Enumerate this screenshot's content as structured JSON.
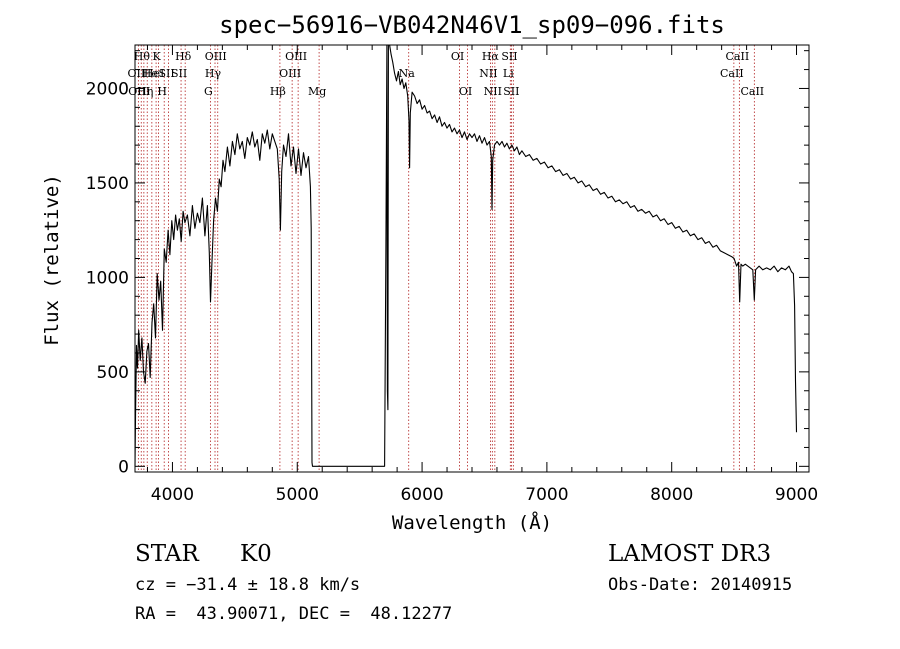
{
  "chart_data": {
    "type": "line",
    "title": "spec−56916−VB042N46V1_sp09−096.fits",
    "xlabel": "Wavelength (Å)",
    "ylabel": "Flux (relative)",
    "xlim": [
      3700,
      9100
    ],
    "ylim": [
      -30,
      2230
    ],
    "xticks": [
      {
        "value": 4000,
        "label": "4000"
      },
      {
        "value": 5000,
        "label": "5000"
      },
      {
        "value": 6000,
        "label": "6000"
      },
      {
        "value": 7000,
        "label": "7000"
      },
      {
        "value": 8000,
        "label": "8000"
      },
      {
        "value": 9000,
        "label": "9000"
      }
    ],
    "yticks": [
      {
        "value": 0,
        "label": "0"
      },
      {
        "value": 500,
        "label": "500"
      },
      {
        "value": 1000,
        "label": "1000"
      },
      {
        "value": 1500,
        "label": "1500"
      },
      {
        "value": 2000,
        "label": "2000"
      }
    ],
    "series": [
      {
        "name": "flux",
        "points": [
          [
            3700,
            0
          ],
          [
            3705,
            300
          ],
          [
            3712,
            640
          ],
          [
            3720,
            520
          ],
          [
            3730,
            720
          ],
          [
            3742,
            560
          ],
          [
            3755,
            680
          ],
          [
            3768,
            500
          ],
          [
            3782,
            440
          ],
          [
            3795,
            610
          ],
          [
            3808,
            650
          ],
          [
            3822,
            470
          ],
          [
            3836,
            760
          ],
          [
            3850,
            860
          ],
          [
            3864,
            680
          ],
          [
            3878,
            1020
          ],
          [
            3892,
            880
          ],
          [
            3906,
            980
          ],
          [
            3920,
            720
          ],
          [
            3935,
            1150
          ],
          [
            3950,
            1080
          ],
          [
            3965,
            1250
          ],
          [
            3980,
            1120
          ],
          [
            3995,
            1300
          ],
          [
            4010,
            1200
          ],
          [
            4025,
            1330
          ],
          [
            4040,
            1250
          ],
          [
            4055,
            1310
          ],
          [
            4070,
            1190
          ],
          [
            4085,
            1350
          ],
          [
            4100,
            1290
          ],
          [
            4120,
            1330
          ],
          [
            4140,
            1220
          ],
          [
            4160,
            1380
          ],
          [
            4180,
            1260
          ],
          [
            4200,
            1340
          ],
          [
            4220,
            1290
          ],
          [
            4240,
            1420
          ],
          [
            4260,
            1220
          ],
          [
            4280,
            1380
          ],
          [
            4295,
            1130
          ],
          [
            4305,
            870
          ],
          [
            4315,
            1060
          ],
          [
            4330,
            1300
          ],
          [
            4345,
            1420
          ],
          [
            4360,
            1350
          ],
          [
            4375,
            1520
          ],
          [
            4390,
            1480
          ],
          [
            4405,
            1620
          ],
          [
            4420,
            1560
          ],
          [
            4440,
            1690
          ],
          [
            4460,
            1590
          ],
          [
            4480,
            1720
          ],
          [
            4500,
            1650
          ],
          [
            4520,
            1760
          ],
          [
            4540,
            1680
          ],
          [
            4560,
            1720
          ],
          [
            4580,
            1630
          ],
          [
            4600,
            1740
          ],
          [
            4620,
            1700
          ],
          [
            4640,
            1770
          ],
          [
            4660,
            1690
          ],
          [
            4680,
            1730
          ],
          [
            4700,
            1620
          ],
          [
            4720,
            1760
          ],
          [
            4740,
            1710
          ],
          [
            4760,
            1780
          ],
          [
            4780,
            1680
          ],
          [
            4800,
            1760
          ],
          [
            4820,
            1720
          ],
          [
            4840,
            1680
          ],
          [
            4855,
            1520
          ],
          [
            4865,
            1250
          ],
          [
            4875,
            1560
          ],
          [
            4890,
            1700
          ],
          [
            4910,
            1640
          ],
          [
            4930,
            1760
          ],
          [
            4950,
            1590
          ],
          [
            4970,
            1690
          ],
          [
            4990,
            1550
          ],
          [
            5010,
            1680
          ],
          [
            5030,
            1540
          ],
          [
            5050,
            1660
          ],
          [
            5070,
            1580
          ],
          [
            5090,
            1640
          ],
          [
            5105,
            1480
          ],
          [
            5112,
            1260
          ],
          [
            5118,
            20
          ],
          [
            5122,
            0
          ],
          [
            5140,
            0
          ],
          [
            5200,
            0
          ],
          [
            5400,
            0
          ],
          [
            5600,
            0
          ],
          [
            5700,
            0
          ],
          [
            5710,
            1160
          ],
          [
            5718,
            2230
          ],
          [
            5722,
            400
          ],
          [
            5726,
            300
          ],
          [
            5730,
            2230
          ],
          [
            5740,
            2230
          ],
          [
            5752,
            2180
          ],
          [
            5765,
            2140
          ],
          [
            5780,
            2080
          ],
          [
            5795,
            2040
          ],
          [
            5810,
            2090
          ],
          [
            5825,
            2020
          ],
          [
            5840,
            2050
          ],
          [
            5855,
            2000
          ],
          [
            5870,
            2030
          ],
          [
            5885,
            1960
          ],
          [
            5895,
            1830
          ],
          [
            5900,
            1580
          ],
          [
            5906,
            1870
          ],
          [
            5920,
            1980
          ],
          [
            5940,
            1960
          ],
          [
            5960,
            1920
          ],
          [
            5980,
            1940
          ],
          [
            6000,
            1890
          ],
          [
            6020,
            1910
          ],
          [
            6040,
            1870
          ],
          [
            6060,
            1880
          ],
          [
            6080,
            1840
          ],
          [
            6100,
            1860
          ],
          [
            6120,
            1820
          ],
          [
            6140,
            1850
          ],
          [
            6160,
            1800
          ],
          [
            6180,
            1820
          ],
          [
            6200,
            1790
          ],
          [
            6220,
            1810
          ],
          [
            6240,
            1770
          ],
          [
            6260,
            1790
          ],
          [
            6280,
            1760
          ],
          [
            6300,
            1780
          ],
          [
            6320,
            1740
          ],
          [
            6340,
            1770
          ],
          [
            6360,
            1730
          ],
          [
            6380,
            1760
          ],
          [
            6400,
            1740
          ],
          [
            6420,
            1760
          ],
          [
            6440,
            1720
          ],
          [
            6460,
            1750
          ],
          [
            6480,
            1710
          ],
          [
            6500,
            1740
          ],
          [
            6520,
            1700
          ],
          [
            6540,
            1720
          ],
          [
            6555,
            1640
          ],
          [
            6560,
            1360
          ],
          [
            6566,
            1620
          ],
          [
            6580,
            1700
          ],
          [
            6600,
            1720
          ],
          [
            6620,
            1700
          ],
          [
            6640,
            1720
          ],
          [
            6660,
            1690
          ],
          [
            6680,
            1710
          ],
          [
            6700,
            1680
          ],
          [
            6720,
            1700
          ],
          [
            6740,
            1670
          ],
          [
            6760,
            1690
          ],
          [
            6780,
            1650
          ],
          [
            6800,
            1670
          ],
          [
            6830,
            1640
          ],
          [
            6860,
            1650
          ],
          [
            6890,
            1620
          ],
          [
            6920,
            1630
          ],
          [
            6950,
            1600
          ],
          [
            6980,
            1610
          ],
          [
            7010,
            1580
          ],
          [
            7040,
            1590
          ],
          [
            7070,
            1560
          ],
          [
            7100,
            1570
          ],
          [
            7130,
            1540
          ],
          [
            7160,
            1550
          ],
          [
            7190,
            1520
          ],
          [
            7220,
            1530
          ],
          [
            7250,
            1500
          ],
          [
            7280,
            1510
          ],
          [
            7310,
            1480
          ],
          [
            7340,
            1490
          ],
          [
            7370,
            1460
          ],
          [
            7400,
            1470
          ],
          [
            7430,
            1440
          ],
          [
            7460,
            1450
          ],
          [
            7490,
            1420
          ],
          [
            7520,
            1430
          ],
          [
            7550,
            1400
          ],
          [
            7580,
            1410
          ],
          [
            7610,
            1390
          ],
          [
            7640,
            1400
          ],
          [
            7670,
            1370
          ],
          [
            7700,
            1380
          ],
          [
            7730,
            1350
          ],
          [
            7760,
            1360
          ],
          [
            7790,
            1340
          ],
          [
            7820,
            1350
          ],
          [
            7850,
            1320
          ],
          [
            7880,
            1330
          ],
          [
            7910,
            1300
          ],
          [
            7940,
            1310
          ],
          [
            7970,
            1280
          ],
          [
            8000,
            1290
          ],
          [
            8030,
            1260
          ],
          [
            8060,
            1270
          ],
          [
            8090,
            1240
          ],
          [
            8120,
            1250
          ],
          [
            8150,
            1220
          ],
          [
            8180,
            1230
          ],
          [
            8210,
            1200
          ],
          [
            8240,
            1210
          ],
          [
            8270,
            1180
          ],
          [
            8300,
            1190
          ],
          [
            8330,
            1160
          ],
          [
            8360,
            1170
          ],
          [
            8390,
            1140
          ],
          [
            8420,
            1130
          ],
          [
            8450,
            1120
          ],
          [
            8480,
            1110
          ],
          [
            8500,
            1100
          ],
          [
            8520,
            1060
          ],
          [
            8535,
            1080
          ],
          [
            8545,
            870
          ],
          [
            8555,
            1070
          ],
          [
            8570,
            1060
          ],
          [
            8590,
            1070
          ],
          [
            8610,
            1060
          ],
          [
            8630,
            1050
          ],
          [
            8650,
            1040
          ],
          [
            8662,
            880
          ],
          [
            8672,
            1040
          ],
          [
            8700,
            1060
          ],
          [
            8730,
            1040
          ],
          [
            8760,
            1050
          ],
          [
            8790,
            1040
          ],
          [
            8820,
            1060
          ],
          [
            8850,
            1030
          ],
          [
            8880,
            1050
          ],
          [
            8910,
            1040
          ],
          [
            8940,
            1060
          ],
          [
            8960,
            1030
          ],
          [
            8975,
            1020
          ],
          [
            8985,
            850
          ],
          [
            8992,
            450
          ],
          [
            9000,
            180
          ]
        ]
      }
    ],
    "lines": [
      {
        "wavelength": 3727,
        "label": "OII",
        "row": 1
      },
      {
        "wavelength": 3750,
        "label": "OIII",
        "row": 2
      },
      {
        "wavelength": 3771,
        "label": "Hθ",
        "row": 0
      },
      {
        "wavelength": 3798,
        "label": "Hη",
        "row": 2
      },
      {
        "wavelength": 3835,
        "label": "He",
        "row": 1
      },
      {
        "wavelength": 3869,
        "label": "HeI",
        "row": 1
      },
      {
        "wavelength": 3889,
        "label": "K",
        "row": 0
      },
      {
        "wavelength": 3934,
        "label": "H",
        "row": 2
      },
      {
        "wavelength": 3969,
        "label": "SII",
        "row": 1
      },
      {
        "wavelength": 4069,
        "label": "SII",
        "row": 1
      },
      {
        "wavelength": 4102,
        "label": "Hδ",
        "row": 0
      },
      {
        "wavelength": 4304,
        "label": "G",
        "row": 2
      },
      {
        "wavelength": 4341,
        "label": "Hγ",
        "row": 1
      },
      {
        "wavelength": 4363,
        "label": "OIII",
        "row": 0
      },
      {
        "wavelength": 4861,
        "label": "Hβ",
        "row": 2
      },
      {
        "wavelength": 4959,
        "label": "OIII",
        "row": 1
      },
      {
        "wavelength": 5007,
        "label": "OIII",
        "row": 0
      },
      {
        "wavelength": 5175,
        "label": "Mg",
        "row": 2
      },
      {
        "wavelength": 5893,
        "label": "Na",
        "row": 1
      },
      {
        "wavelength": 6300,
        "label": "OI",
        "row": 0
      },
      {
        "wavelength": 6364,
        "label": "OI",
        "row": 2
      },
      {
        "wavelength": 6548,
        "label": "NII",
        "row": 1
      },
      {
        "wavelength": 6563,
        "label": "Hα",
        "row": 0
      },
      {
        "wavelength": 6583,
        "label": "NII",
        "row": 2
      },
      {
        "wavelength": 6707,
        "label": "Li",
        "row": 1
      },
      {
        "wavelength": 6716,
        "label": "SII",
        "row": 0
      },
      {
        "wavelength": 6731,
        "label": "SII",
        "row": 2
      },
      {
        "wavelength": 8498,
        "label": "CaII",
        "row": 1
      },
      {
        "wavelength": 8542,
        "label": "CaII",
        "row": 0
      },
      {
        "wavelength": 8662,
        "label": "CaII",
        "row": 2
      }
    ]
  },
  "info": {
    "object_class": "STAR",
    "subclass": "K0",
    "survey": "LAMOST DR3",
    "redshift": "cz = −31.4 ± 18.8 km/s",
    "obs_date": "Obs-Date: 20140915",
    "coords": "RA =  43.90071, DEC =  48.12277"
  }
}
